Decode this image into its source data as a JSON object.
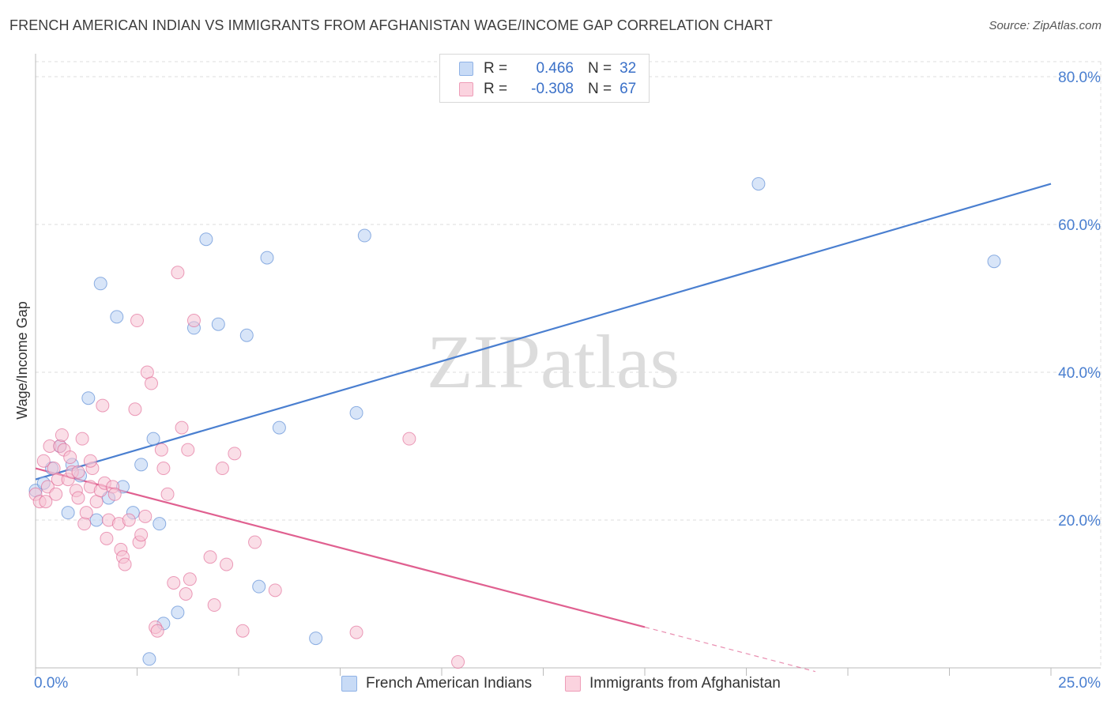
{
  "chart_data": {
    "type": "scatter",
    "title": "FRENCH AMERICAN INDIAN VS IMMIGRANTS FROM AFGHANISTAN WAGE/INCOME GAP CORRELATION CHART",
    "source": "Source: ZipAtlas.com",
    "ylabel": "Wage/Income Gap",
    "xlabel": "",
    "xlim": [
      0,
      25
    ],
    "ylim": [
      0,
      80
    ],
    "x_tick_labels": [
      "0.0%",
      "25.0%"
    ],
    "y_ticks": [
      20,
      40,
      60,
      80
    ],
    "y_tick_labels": [
      "20.0%",
      "40.0%",
      "60.0%",
      "80.0%"
    ],
    "watermark": "ZIPatlas",
    "legend": [
      {
        "r_label": "R =",
        "r_value": "0.466",
        "n_label": "N =",
        "n_value": "32"
      },
      {
        "r_label": "R =",
        "r_value": "-0.308",
        "n_label": "N =",
        "n_value": "67"
      }
    ],
    "series": [
      {
        "name": "French American Indians",
        "color": "#4a7fd0",
        "fill": "#b8cff2",
        "trend": {
          "x0": 0,
          "y0": 25.5,
          "x1": 25,
          "y1": 65.5,
          "dash_from": null
        },
        "points": [
          [
            0.0,
            24.0
          ],
          [
            0.2,
            25.0
          ],
          [
            0.4,
            27.0
          ],
          [
            0.6,
            30.0
          ],
          [
            0.9,
            27.5
          ],
          [
            1.1,
            26.0
          ],
          [
            0.8,
            21.0
          ],
          [
            1.3,
            36.5
          ],
          [
            1.6,
            52.0
          ],
          [
            2.0,
            47.5
          ],
          [
            1.5,
            20.0
          ],
          [
            1.8,
            23.0
          ],
          [
            2.15,
            24.5
          ],
          [
            2.4,
            21.0
          ],
          [
            2.6,
            27.5
          ],
          [
            2.9,
            31.0
          ],
          [
            3.05,
            19.5
          ],
          [
            3.15,
            6.0
          ],
          [
            3.5,
            7.5
          ],
          [
            3.9,
            46.0
          ],
          [
            4.2,
            58.0
          ],
          [
            4.5,
            46.5
          ],
          [
            5.2,
            45.0
          ],
          [
            5.5,
            11.0
          ],
          [
            5.7,
            55.5
          ],
          [
            6.0,
            32.5
          ],
          [
            6.9,
            4.0
          ],
          [
            7.9,
            34.5
          ],
          [
            8.1,
            58.5
          ],
          [
            17.8,
            65.5
          ],
          [
            23.6,
            55.0
          ],
          [
            2.8,
            1.2
          ]
        ]
      },
      {
        "name": "Immigrants from Afghanistan",
        "color": "#e06090",
        "fill": "#f6c2d3",
        "trend": {
          "x0": 0,
          "y0": 27.0,
          "x1": 19.2,
          "y1": -0.5,
          "dash_from": 15.0
        },
        "points": [
          [
            0.0,
            23.5
          ],
          [
            0.1,
            22.5
          ],
          [
            0.2,
            28.0
          ],
          [
            0.3,
            24.5
          ],
          [
            0.35,
            30.0
          ],
          [
            0.45,
            27.0
          ],
          [
            0.5,
            23.5
          ],
          [
            0.55,
            25.5
          ],
          [
            0.6,
            30.0
          ],
          [
            0.65,
            31.5
          ],
          [
            0.7,
            29.5
          ],
          [
            0.8,
            25.5
          ],
          [
            0.85,
            28.5
          ],
          [
            0.9,
            26.5
          ],
          [
            1.0,
            24.0
          ],
          [
            1.05,
            23.0
          ],
          [
            1.15,
            31.0
          ],
          [
            1.2,
            19.5
          ],
          [
            1.25,
            21.0
          ],
          [
            1.35,
            24.5
          ],
          [
            1.4,
            27.0
          ],
          [
            1.5,
            22.5
          ],
          [
            1.6,
            24.0
          ],
          [
            1.65,
            35.5
          ],
          [
            1.7,
            25.0
          ],
          [
            1.75,
            17.5
          ],
          [
            1.8,
            20.0
          ],
          [
            1.9,
            24.5
          ],
          [
            1.95,
            23.5
          ],
          [
            2.05,
            19.5
          ],
          [
            2.1,
            16.0
          ],
          [
            2.15,
            15.0
          ],
          [
            2.2,
            14.0
          ],
          [
            2.3,
            20.0
          ],
          [
            2.45,
            35.0
          ],
          [
            2.5,
            47.0
          ],
          [
            2.55,
            17.0
          ],
          [
            2.6,
            18.0
          ],
          [
            2.7,
            20.5
          ],
          [
            2.75,
            40.0
          ],
          [
            2.85,
            38.5
          ],
          [
            2.95,
            5.5
          ],
          [
            3.0,
            5.0
          ],
          [
            3.1,
            29.5
          ],
          [
            3.15,
            27.0
          ],
          [
            3.25,
            23.5
          ],
          [
            3.4,
            11.5
          ],
          [
            3.5,
            53.5
          ],
          [
            3.6,
            32.5
          ],
          [
            3.7,
            10.0
          ],
          [
            3.75,
            29.5
          ],
          [
            3.8,
            12.0
          ],
          [
            3.9,
            47.0
          ],
          [
            4.3,
            15.0
          ],
          [
            4.4,
            8.5
          ],
          [
            4.6,
            27.0
          ],
          [
            4.7,
            14.0
          ],
          [
            4.9,
            29.0
          ],
          [
            5.1,
            5.0
          ],
          [
            5.4,
            17.0
          ],
          [
            5.9,
            10.5
          ],
          [
            7.9,
            4.8
          ],
          [
            9.2,
            31.0
          ],
          [
            10.4,
            0.8
          ],
          [
            1.05,
            26.5
          ],
          [
            0.25,
            22.5
          ],
          [
            1.35,
            28.0
          ]
        ]
      }
    ]
  }
}
